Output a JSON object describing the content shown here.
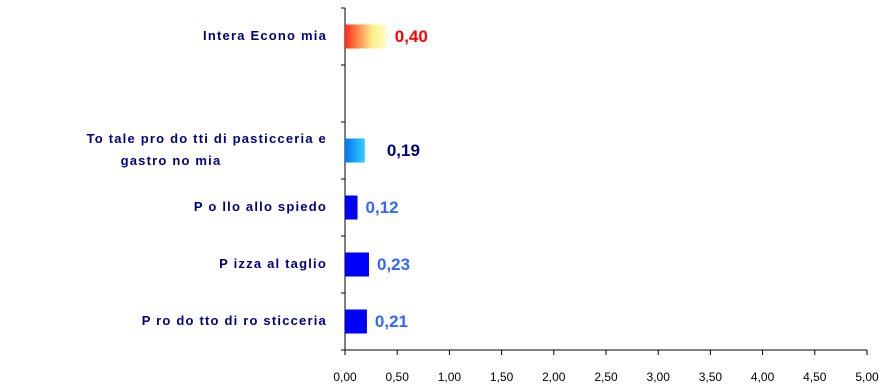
{
  "chart_data": {
    "type": "bar",
    "orientation": "horizontal",
    "title": "",
    "xlabel": "",
    "ylabel": "",
    "xlim": [
      0,
      5
    ],
    "x_ticks": [
      "0,00",
      "0,50",
      "1,00",
      "1,50",
      "2,00",
      "2,50",
      "3,00",
      "3,50",
      "4,00",
      "4,50",
      "5,00"
    ],
    "grid": false,
    "legend": "none",
    "categories": [
      {
        "label_lines": [
          "Intera Econo mia"
        ],
        "value": 0.4,
        "value_label": "0,40",
        "fill": "gradient-warm",
        "label_color": "#ff0000"
      },
      {
        "label_lines": [],
        "value": null,
        "value_label": "",
        "fill": "none",
        "label_color": "#000000"
      },
      {
        "label_lines": [
          "To tale pro do tti di pasticceria e",
          "gastro no mia"
        ],
        "value": 0.19,
        "value_label": "0,19",
        "fill": "gradient-blue",
        "label_color": "#000080"
      },
      {
        "label_lines": [
          "P o llo allo spiedo"
        ],
        "value": 0.12,
        "value_label": "0,12",
        "fill": "#0000ff",
        "label_color": "#3366ff"
      },
      {
        "label_lines": [
          "P izza al taglio"
        ],
        "value": 0.23,
        "value_label": "0,23",
        "fill": "#0000ff",
        "label_color": "#3366ff"
      },
      {
        "label_lines": [
          "P ro do tto di ro sticceria"
        ],
        "value": 0.21,
        "value_label": "0,21",
        "fill": "#0000ff",
        "label_color": "#3366ff"
      }
    ],
    "colors": {
      "axis": "#000000",
      "warm_gradient": [
        "#ff2a1a",
        "#ffee88",
        "#ffffcc"
      ],
      "blue_gradient": [
        "#0077ee",
        "#33ccff"
      ],
      "solid_bar": "#0000ff"
    }
  }
}
